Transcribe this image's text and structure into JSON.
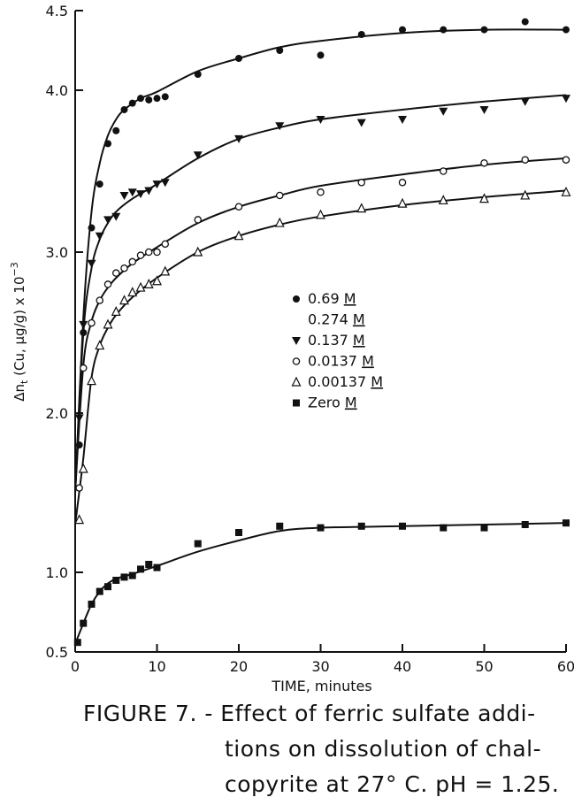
{
  "chart_data": {
    "type": "scatter",
    "title": "",
    "xlabel": "TIME, minutes",
    "ylabel": "Δn_t (Cu, µg/g) x 10^-3",
    "xlim": [
      0,
      60
    ],
    "ylim": [
      0.5,
      4.5
    ],
    "xticks": [
      "0",
      "10",
      "20",
      "30",
      "40",
      "50",
      "60"
    ],
    "yticks": [
      {
        "value": 0.5,
        "label": "0.5"
      },
      {
        "value": 1.0,
        "label": "1.0"
      },
      {
        "value": 2.0,
        "label": "2.0"
      },
      {
        "value": 3.0,
        "label": "3.0"
      },
      {
        "value": 4.0,
        "label": "4.0"
      },
      {
        "value": 4.5,
        "label": "4.5"
      }
    ],
    "grid": false,
    "legend_position": "center-right",
    "series": [
      {
        "name": "0.69 M / 0.274 M",
        "marker": "filled-circle",
        "points": [
          [
            0.5,
            1.8
          ],
          [
            1,
            2.5
          ],
          [
            2,
            3.15
          ],
          [
            3,
            3.42
          ],
          [
            4,
            3.67
          ],
          [
            5,
            3.75
          ],
          [
            6,
            3.88
          ],
          [
            7,
            3.92
          ],
          [
            8,
            3.95
          ],
          [
            9,
            3.94
          ],
          [
            10,
            3.95
          ],
          [
            11,
            3.96
          ],
          [
            15,
            4.1
          ],
          [
            20,
            4.2
          ],
          [
            25,
            4.25
          ],
          [
            30,
            4.22
          ],
          [
            35,
            4.35
          ],
          [
            40,
            4.38
          ],
          [
            45,
            4.38
          ],
          [
            50,
            4.38
          ],
          [
            55,
            4.43
          ],
          [
            60,
            4.38
          ]
        ],
        "curve": [
          [
            0,
            1.5
          ],
          [
            1,
            2.6
          ],
          [
            2,
            3.25
          ],
          [
            3,
            3.55
          ],
          [
            4,
            3.72
          ],
          [
            5,
            3.82
          ],
          [
            6,
            3.88
          ],
          [
            8,
            3.95
          ],
          [
            10,
            3.99
          ],
          [
            15,
            4.12
          ],
          [
            20,
            4.2
          ],
          [
            25,
            4.27
          ],
          [
            30,
            4.31
          ],
          [
            40,
            4.36
          ],
          [
            50,
            4.38
          ],
          [
            60,
            4.38
          ]
        ]
      },
      {
        "name": "0.137 M",
        "marker": "filled-triangle-down",
        "points": [
          [
            0.5,
            1.97
          ],
          [
            1,
            2.55
          ],
          [
            2,
            2.93
          ],
          [
            3,
            3.1
          ],
          [
            4,
            3.2
          ],
          [
            5,
            3.22
          ],
          [
            6,
            3.35
          ],
          [
            7,
            3.37
          ],
          [
            8,
            3.36
          ],
          [
            9,
            3.38
          ],
          [
            10,
            3.42
          ],
          [
            11,
            3.43
          ],
          [
            15,
            3.6
          ],
          [
            20,
            3.7
          ],
          [
            25,
            3.78
          ],
          [
            30,
            3.82
          ],
          [
            35,
            3.8
          ],
          [
            40,
            3.82
          ],
          [
            45,
            3.87
          ],
          [
            50,
            3.88
          ],
          [
            55,
            3.93
          ],
          [
            60,
            3.95
          ]
        ],
        "curve": [
          [
            0,
            1.5
          ],
          [
            1,
            2.5
          ],
          [
            2,
            2.9
          ],
          [
            3,
            3.08
          ],
          [
            4,
            3.18
          ],
          [
            5,
            3.25
          ],
          [
            7,
            3.33
          ],
          [
            10,
            3.42
          ],
          [
            15,
            3.58
          ],
          [
            20,
            3.7
          ],
          [
            25,
            3.77
          ],
          [
            30,
            3.82
          ],
          [
            40,
            3.88
          ],
          [
            50,
            3.93
          ],
          [
            60,
            3.97
          ]
        ]
      },
      {
        "name": "0.0137 M",
        "marker": "open-circle",
        "points": [
          [
            0.5,
            1.53
          ],
          [
            1,
            2.28
          ],
          [
            2,
            2.56
          ],
          [
            3,
            2.7
          ],
          [
            4,
            2.8
          ],
          [
            5,
            2.87
          ],
          [
            6,
            2.9
          ],
          [
            7,
            2.94
          ],
          [
            8,
            2.98
          ],
          [
            9,
            3.0
          ],
          [
            10,
            3.0
          ],
          [
            11,
            3.05
          ],
          [
            15,
            3.2
          ],
          [
            20,
            3.28
          ],
          [
            25,
            3.35
          ],
          [
            30,
            3.37
          ],
          [
            35,
            3.43
          ],
          [
            40,
            3.43
          ],
          [
            45,
            3.5
          ],
          [
            50,
            3.55
          ],
          [
            55,
            3.57
          ],
          [
            60,
            3.57
          ]
        ],
        "curve": [
          [
            0,
            1.5
          ],
          [
            1,
            2.3
          ],
          [
            2,
            2.57
          ],
          [
            3,
            2.7
          ],
          [
            4,
            2.78
          ],
          [
            5,
            2.84
          ],
          [
            7,
            2.93
          ],
          [
            10,
            3.03
          ],
          [
            15,
            3.18
          ],
          [
            20,
            3.28
          ],
          [
            25,
            3.35
          ],
          [
            30,
            3.41
          ],
          [
            40,
            3.48
          ],
          [
            50,
            3.54
          ],
          [
            60,
            3.58
          ]
        ]
      },
      {
        "name": "0.00137 M",
        "marker": "open-triangle",
        "points": [
          [
            0.5,
            1.33
          ],
          [
            1,
            1.65
          ],
          [
            2,
            2.2
          ],
          [
            3,
            2.42
          ],
          [
            4,
            2.55
          ],
          [
            5,
            2.63
          ],
          [
            6,
            2.7
          ],
          [
            7,
            2.75
          ],
          [
            8,
            2.78
          ],
          [
            9,
            2.8
          ],
          [
            10,
            2.82
          ],
          [
            11,
            2.88
          ],
          [
            15,
            3.0
          ],
          [
            20,
            3.1
          ],
          [
            25,
            3.18
          ],
          [
            30,
            3.23
          ],
          [
            35,
            3.27
          ],
          [
            40,
            3.3
          ],
          [
            45,
            3.32
          ],
          [
            50,
            3.33
          ],
          [
            55,
            3.35
          ],
          [
            60,
            3.37
          ]
        ],
        "curve": [
          [
            0,
            1.3
          ],
          [
            1,
            1.72
          ],
          [
            2,
            2.22
          ],
          [
            3,
            2.42
          ],
          [
            4,
            2.53
          ],
          [
            5,
            2.61
          ],
          [
            7,
            2.72
          ],
          [
            10,
            2.84
          ],
          [
            15,
            3.0
          ],
          [
            20,
            3.1
          ],
          [
            25,
            3.17
          ],
          [
            30,
            3.22
          ],
          [
            40,
            3.29
          ],
          [
            50,
            3.34
          ],
          [
            60,
            3.38
          ]
        ]
      },
      {
        "name": "Zero M",
        "marker": "filled-square",
        "points": [
          [
            0.3,
            0.56
          ],
          [
            1,
            0.68
          ],
          [
            2,
            0.8
          ],
          [
            3,
            0.88
          ],
          [
            4,
            0.91
          ],
          [
            5,
            0.95
          ],
          [
            6,
            0.97
          ],
          [
            7,
            0.98
          ],
          [
            8,
            1.02
          ],
          [
            9,
            1.05
          ],
          [
            10,
            1.03
          ],
          [
            15,
            1.18
          ],
          [
            20,
            1.25
          ],
          [
            25,
            1.29
          ],
          [
            30,
            1.28
          ],
          [
            35,
            1.29
          ],
          [
            40,
            1.29
          ],
          [
            45,
            1.28
          ],
          [
            50,
            1.28
          ],
          [
            55,
            1.3
          ],
          [
            60,
            1.31
          ]
        ],
        "curve": [
          [
            0,
            0.55
          ],
          [
            1,
            0.68
          ],
          [
            2,
            0.8
          ],
          [
            3,
            0.88
          ],
          [
            4,
            0.93
          ],
          [
            5,
            0.96
          ],
          [
            7,
            0.99
          ],
          [
            10,
            1.04
          ],
          [
            15,
            1.13
          ],
          [
            20,
            1.2
          ],
          [
            25,
            1.26
          ],
          [
            30,
            1.28
          ],
          [
            40,
            1.29
          ],
          [
            50,
            1.3
          ],
          [
            60,
            1.31
          ]
        ]
      }
    ]
  },
  "axis_labels": {
    "ylabel_main": "Δn",
    "ylabel_sub": "t",
    "ylabel_rest": " (Cu, µg/g) x 10",
    "ylabel_sup": "−3",
    "xlabel": "TIME, minutes"
  },
  "legend": {
    "entries": [
      {
        "marker": "filled-circle",
        "value": "0.69",
        "unit": "M"
      },
      {
        "marker": "none",
        "value": "0.274",
        "unit": "M"
      },
      {
        "marker": "filled-triangle-down",
        "value": "0.137",
        "unit": "M"
      },
      {
        "marker": "open-circle",
        "value": "0.0137",
        "unit": "M"
      },
      {
        "marker": "open-triangle",
        "value": "0.00137",
        "unit": "M"
      },
      {
        "marker": "filled-square",
        "value": "Zero",
        "unit": "M"
      }
    ]
  },
  "caption": {
    "line1": "FIGURE 7. - Effect of ferric sulfate addi-",
    "line2": "tions on dissolution of chal-",
    "line3": "copyrite at 27° C.   pH = 1.25."
  }
}
